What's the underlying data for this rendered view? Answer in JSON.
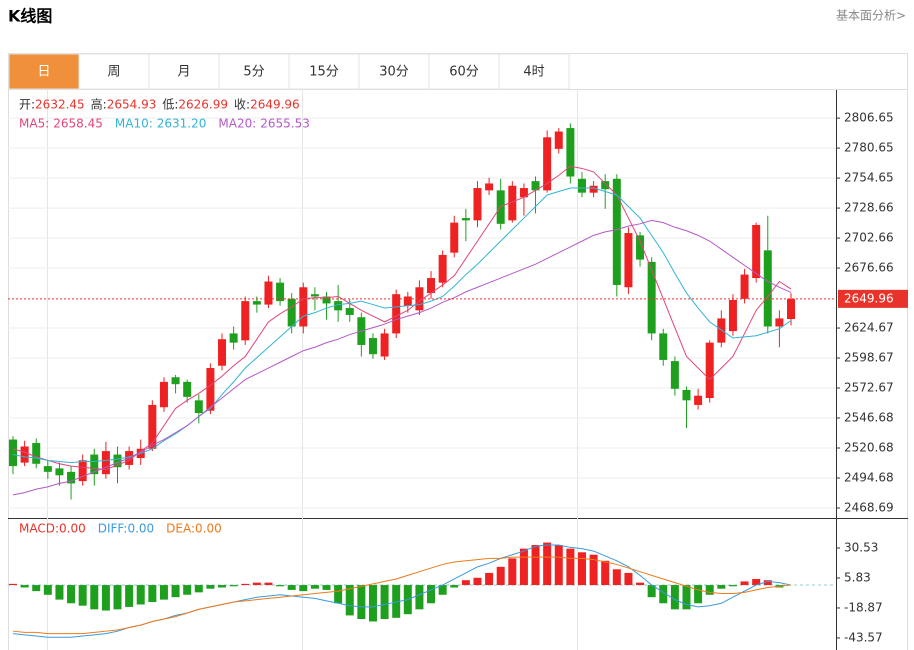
{
  "header": {
    "title": "K线图",
    "link": "基本面分析>"
  },
  "tabs": [
    "日",
    "周",
    "月",
    "5分",
    "15分",
    "30分",
    "60分",
    "4时"
  ],
  "active_tab": 0,
  "chart_data": [
    {
      "type": "candlestick",
      "ohlc_labels": [
        "开:",
        "高:",
        "低:",
        "收:"
      ],
      "up_color": "#ee2222",
      "down_color": "#1ea01e",
      "open": [
        2528,
        2508,
        2525,
        2505,
        2503,
        2500,
        2492,
        2515,
        2498,
        2515,
        2506,
        2512,
        2520,
        2556,
        2582,
        2578,
        2562,
        2553,
        2592,
        2620,
        2614,
        2648,
        2645,
        2664,
        2650,
        2626,
        2654,
        2652,
        2648,
        2642,
        2634,
        2616,
        2600,
        2620,
        2644,
        2640,
        2655,
        2664,
        2690,
        2720,
        2718,
        2744,
        2744,
        2718,
        2738,
        2752,
        2744,
        2780,
        2798,
        2754,
        2742,
        2752,
        2754,
        2660,
        2705,
        2682,
        2620,
        2596,
        2571,
        2558,
        2564,
        2612,
        2622,
        2650,
        2668,
        2692,
        2626,
        2632.45
      ],
      "high": [
        2531,
        2527,
        2529,
        2510,
        2508,
        2505,
        2515,
        2520,
        2526,
        2522,
        2522,
        2528,
        2562,
        2582,
        2584,
        2580,
        2567,
        2594,
        2620,
        2626,
        2652,
        2652,
        2670,
        2668,
        2655,
        2664,
        2660,
        2656,
        2662,
        2650,
        2638,
        2620,
        2624,
        2658,
        2656,
        2666,
        2674,
        2692,
        2722,
        2728,
        2752,
        2755,
        2754,
        2752,
        2750,
        2756,
        2796,
        2798,
        2802,
        2760,
        2752,
        2758,
        2758,
        2712,
        2708,
        2686,
        2624,
        2600,
        2574,
        2572,
        2614,
        2640,
        2654,
        2676,
        2716,
        2722,
        2640,
        2654.93
      ],
      "low": [
        2498,
        2505,
        2503,
        2494,
        2488,
        2476,
        2488,
        2488,
        2494,
        2490,
        2502,
        2506,
        2518,
        2552,
        2568,
        2560,
        2542,
        2550,
        2588,
        2606,
        2610,
        2638,
        2642,
        2644,
        2620,
        2620,
        2640,
        2632,
        2630,
        2630,
        2600,
        2598,
        2597,
        2616,
        2638,
        2636,
        2650,
        2660,
        2686,
        2700,
        2712,
        2740,
        2710,
        2716,
        2722,
        2724,
        2742,
        2776,
        2750,
        2738,
        2738,
        2728,
        2652,
        2654,
        2678,
        2614,
        2592,
        2566,
        2538,
        2554,
        2560,
        2608,
        2618,
        2646,
        2664,
        2620,
        2608,
        2626.99
      ],
      "close": [
        2505,
        2522,
        2507,
        2500,
        2497,
        2490,
        2510,
        2498,
        2518,
        2504,
        2518,
        2520,
        2558,
        2578,
        2576,
        2565,
        2551,
        2590,
        2615,
        2612,
        2648,
        2645,
        2665,
        2648,
        2626,
        2660,
        2652,
        2646,
        2640,
        2636,
        2610,
        2602,
        2620,
        2654,
        2652,
        2660,
        2668,
        2688,
        2716,
        2718,
        2746,
        2750,
        2715,
        2748,
        2746,
        2744,
        2790,
        2795,
        2756,
        2742,
        2748,
        2745,
        2662,
        2707,
        2684,
        2620,
        2597,
        2572,
        2562,
        2566,
        2612,
        2633,
        2649,
        2671,
        2714,
        2626,
        2633,
        2649.96
      ],
      "series": [
        {
          "name": "MA5:",
          "color": "#e0457b",
          "legend_value": "2658.45",
          "values": [
            2520,
            2517,
            2513,
            2510,
            2507,
            2505,
            2504,
            2503,
            2502,
            2506,
            2510,
            2518,
            2525,
            2540,
            2555,
            2562,
            2568,
            2575,
            2583,
            2592,
            2600,
            2615,
            2630,
            2637,
            2643,
            2650,
            2651,
            2651,
            2652,
            2646,
            2640,
            2635,
            2630,
            2635,
            2640,
            2648,
            2655,
            2662,
            2670,
            2685,
            2700,
            2715,
            2730,
            2734,
            2738,
            2744,
            2750,
            2757,
            2765,
            2763,
            2760,
            2750,
            2740,
            2720,
            2700,
            2675,
            2650,
            2625,
            2600,
            2590,
            2580,
            2590,
            2600,
            2620,
            2640,
            2652,
            2665,
            2658.45
          ]
        },
        {
          "name": "MA10:",
          "color": "#33b4d6",
          "legend_value": "2631.20",
          "values": [
            2515,
            2513,
            2512,
            2510,
            2509,
            2508,
            2509,
            2509,
            2510,
            2511,
            2513,
            2516,
            2520,
            2527,
            2533,
            2540,
            2548,
            2555,
            2567,
            2578,
            2590,
            2599,
            2608,
            2617,
            2626,
            2635,
            2638,
            2642,
            2645,
            2646,
            2648,
            2645,
            2642,
            2643,
            2644,
            2645,
            2648,
            2652,
            2661,
            2671,
            2680,
            2690,
            2700,
            2710,
            2720,
            2730,
            2740,
            2743,
            2746,
            2746,
            2746,
            2743,
            2740,
            2730,
            2720,
            2705,
            2690,
            2672,
            2655,
            2642,
            2630,
            2623,
            2616,
            2617,
            2618,
            2621,
            2624,
            2631.2
          ]
        },
        {
          "name": "MA20:",
          "color": "#b35ac6",
          "legend_value": "2655.53",
          "values": [
            2480,
            2482,
            2485,
            2487,
            2490,
            2492,
            2496,
            2500,
            2504,
            2508,
            2512,
            2517,
            2523,
            2528,
            2534,
            2540,
            2548,
            2556,
            2564,
            2572,
            2580,
            2585,
            2590,
            2595,
            2600,
            2605,
            2608,
            2612,
            2615,
            2619,
            2622,
            2625,
            2628,
            2632,
            2635,
            2638,
            2642,
            2647,
            2651,
            2656,
            2660,
            2664,
            2668,
            2672,
            2676,
            2680,
            2685,
            2690,
            2695,
            2700,
            2705,
            2708,
            2710,
            2713,
            2715,
            2718,
            2716,
            2712,
            2709,
            2705,
            2700,
            2693,
            2686,
            2679,
            2672,
            2665,
            2660,
            2655.53
          ]
        }
      ],
      "ylim": [
        2460,
        2831
      ],
      "yticks": [
        2806.65,
        2780.65,
        2754.65,
        2728.66,
        2702.66,
        2676.66,
        2624.67,
        2598.67,
        2572.67,
        2546.68,
        2520.68,
        2494.68,
        2468.69
      ],
      "grid": true
    },
    {
      "type": "macd",
      "up_color": "#ee2222",
      "down_color": "#1ea01e",
      "series": [
        {
          "name": "MACD:",
          "type": "bar",
          "color": "#e8332a",
          "legend_value": "0.00",
          "values": [
            1,
            -2,
            -5,
            -8,
            -12,
            -15,
            -17,
            -20,
            -21,
            -20,
            -18,
            -16,
            -14,
            -12,
            -10,
            -8,
            -6,
            -3,
            -2,
            -1,
            1,
            2,
            2,
            -1,
            -4,
            -5,
            -3,
            -4,
            -15,
            -25,
            -28,
            -30,
            -28,
            -27,
            -24,
            -20,
            -15,
            -8,
            -2,
            4,
            6,
            10,
            15,
            22,
            30,
            33,
            35,
            33,
            30,
            27,
            25,
            20,
            13,
            10,
            2,
            -10,
            -15,
            -20,
            -20,
            -15,
            -8,
            -3,
            -1,
            3,
            5,
            4,
            -2,
            0
          ]
        },
        {
          "name": "DIFF:",
          "type": "line",
          "color": "#3a9ae0",
          "legend_value": "0.00",
          "values": [
            -40,
            -41,
            -42,
            -43,
            -43,
            -43,
            -42,
            -41,
            -40,
            -38,
            -35,
            -33,
            -30,
            -28,
            -25,
            -23,
            -20,
            -18,
            -16,
            -14,
            -12,
            -10,
            -9,
            -8,
            -9,
            -10,
            -11,
            -13,
            -15,
            -17,
            -18,
            -18,
            -16,
            -14,
            -12,
            -8,
            -4,
            0,
            5,
            10,
            15,
            18,
            22,
            25,
            28,
            32,
            33,
            33,
            31,
            30,
            28,
            24,
            20,
            15,
            8,
            0,
            -6,
            -12,
            -16,
            -18,
            -17,
            -15,
            -10,
            -5,
            0,
            3,
            2,
            0
          ]
        },
        {
          "name": "DEA:",
          "type": "line",
          "color": "#f07a1a",
          "legend_value": "0.00",
          "values": [
            -38,
            -39,
            -39,
            -40,
            -40,
            -40,
            -40,
            -39,
            -38,
            -37,
            -35,
            -33,
            -30,
            -28,
            -26,
            -23,
            -20,
            -18,
            -16,
            -14,
            -13,
            -12,
            -11,
            -10,
            -9,
            -8,
            -7,
            -6,
            -5,
            -3,
            -1,
            1,
            3,
            5,
            8,
            11,
            14,
            17,
            19,
            20,
            21,
            22,
            22,
            23,
            23,
            23,
            23,
            23,
            22,
            22,
            21,
            19,
            17,
            14,
            11,
            8,
            5,
            2,
            -1,
            -4,
            -6,
            -7,
            -7,
            -6,
            -4,
            -2,
            -1,
            0
          ]
        }
      ],
      "ylim": [
        -53.5,
        53.6
      ],
      "yticks": [
        30.53,
        5.83,
        -18.87,
        -43.57
      ]
    }
  ]
}
